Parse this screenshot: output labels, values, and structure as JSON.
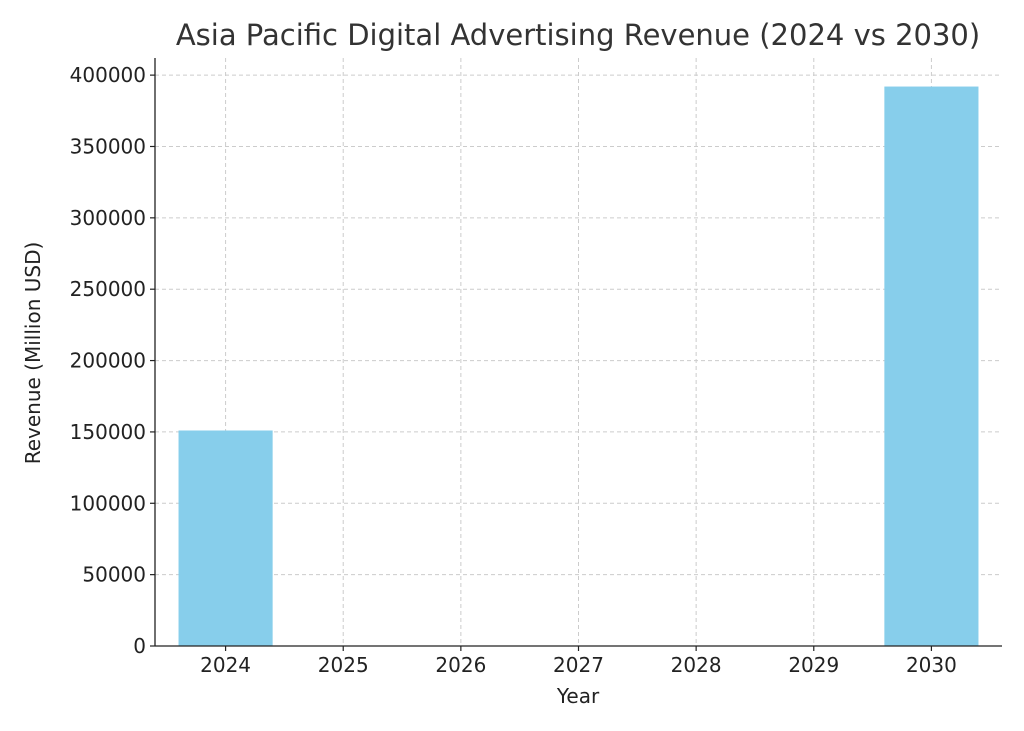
{
  "chart_data": {
    "type": "bar",
    "title": "Asia Pacific Digital Advertising Revenue (2024 vs 2030)",
    "xlabel": "Year",
    "ylabel": "Revenue (Million USD)",
    "categories": [
      "2024",
      "2030"
    ],
    "values": [
      151000,
      392000
    ],
    "x_ticks": [
      2024,
      2025,
      2026,
      2027,
      2028,
      2029,
      2030
    ],
    "y_ticks": [
      0,
      50000,
      100000,
      150000,
      200000,
      250000,
      300000,
      350000,
      400000
    ],
    "xlim": [
      2023.4,
      2030.6
    ],
    "ylim": [
      0,
      412000
    ],
    "bar_width": 0.8,
    "bar_color": "#87CEEB",
    "grid": true,
    "legend": "none"
  }
}
